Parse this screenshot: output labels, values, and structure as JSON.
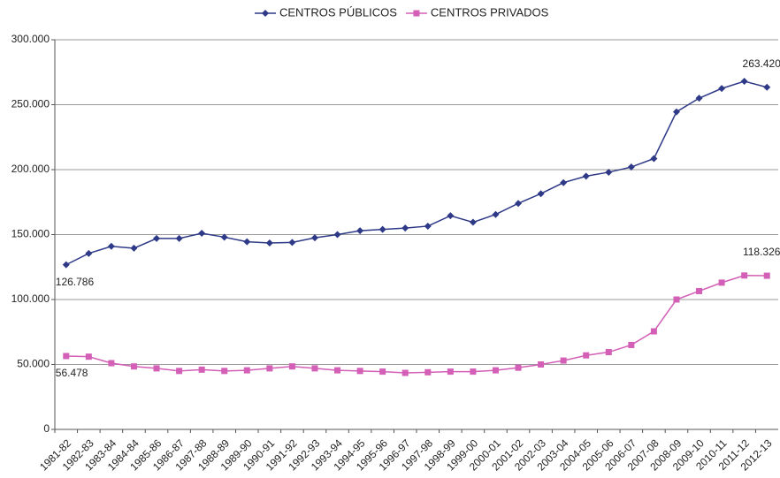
{
  "chart_data": {
    "type": "line",
    "categories": [
      "1981-82",
      "1982-83",
      "1983-84",
      "1984-84",
      "1985-86",
      "1986-87",
      "1987-88",
      "1988-89",
      "1989-90",
      "1990-91",
      "1991-92",
      "1992-93",
      "1993-94",
      "1994-95",
      "1995-96",
      "1996-97",
      "1997-98",
      "1998-99",
      "1999-00",
      "2000-01",
      "2001-02",
      "2002-03",
      "2003-04",
      "2004-05",
      "2005-06",
      "2006-07",
      "2007-08",
      "2008-09",
      "2009-10",
      "2010-11",
      "2011-12",
      "2012-13"
    ],
    "series": [
      {
        "name": "CENTROS PÚBLICOS",
        "color": "#2e3a87",
        "marker": "diamond",
        "values": [
          126786,
          135500,
          141000,
          139500,
          147000,
          147000,
          151000,
          148000,
          144500,
          143500,
          144000,
          147500,
          150000,
          153000,
          154000,
          155000,
          156500,
          164500,
          159500,
          165500,
          174000,
          181500,
          190000,
          195000,
          198000,
          202000,
          208500,
          244500,
          255000,
          262500,
          268000,
          263420
        ],
        "value_labels": [
          "126.786",
          null,
          null,
          null,
          null,
          null,
          null,
          null,
          null,
          null,
          null,
          null,
          null,
          null,
          null,
          null,
          null,
          null,
          null,
          null,
          null,
          null,
          null,
          null,
          null,
          null,
          null,
          null,
          null,
          null,
          null,
          "263.420"
        ]
      },
      {
        "name": "CENTROS PRIVADOS",
        "color": "#d35fb7",
        "marker": "square",
        "values": [
          56478,
          56000,
          51000,
          48500,
          47000,
          45000,
          46000,
          45000,
          45500,
          47000,
          48500,
          47000,
          45500,
          45000,
          44500,
          43500,
          44000,
          44500,
          44500,
          45500,
          47500,
          50000,
          53000,
          57000,
          59500,
          65000,
          75500,
          100000,
          106500,
          113000,
          118500,
          118326
        ],
        "value_labels": [
          "56.478",
          null,
          null,
          null,
          null,
          null,
          null,
          null,
          null,
          null,
          null,
          null,
          null,
          null,
          null,
          null,
          null,
          null,
          null,
          null,
          null,
          null,
          null,
          null,
          null,
          null,
          null,
          null,
          null,
          null,
          null,
          "118.326"
        ]
      }
    ],
    "ylim": [
      0,
      300000
    ],
    "yticks": [
      0,
      {
        "value": 50000,
        "label": "50.000"
      },
      {
        "value": 100000,
        "label": "100.000"
      },
      {
        "value": 150000,
        "label": "150.000"
      },
      {
        "value": 200000,
        "label": "200.000"
      },
      {
        "value": 250000,
        "label": "250.000"
      },
      {
        "value": 300000,
        "label": "300.000"
      }
    ],
    "grid": true,
    "legend": "top"
  }
}
